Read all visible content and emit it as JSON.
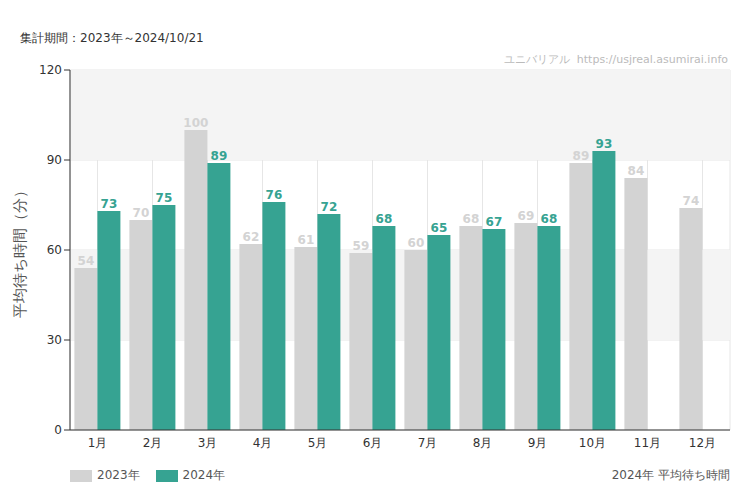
{
  "chart_data": {
    "type": "bar",
    "title": "2024年 平均待ち時間",
    "subtitle": "集計期間：2023年～2024/10/21",
    "annotations": [
      "ユニバリアル  https://usjreal.asumirai.info"
    ],
    "y_label": "平均待ち時間（分）",
    "categories": [
      "1月",
      "2月",
      "3月",
      "4月",
      "5月",
      "6月",
      "7月",
      "8月",
      "9月",
      "10月",
      "11月",
      "12月"
    ],
    "series": [
      {
        "name": "2023年",
        "color": "#d3d3d3",
        "values": [
          54,
          70,
          100,
          62,
          61,
          59,
          60,
          68,
          69,
          89,
          84,
          74
        ]
      },
      {
        "name": "2024年",
        "color": "#36a392",
        "values": [
          73,
          75,
          89,
          76,
          72,
          68,
          65,
          67,
          68,
          93,
          null,
          null
        ]
      }
    ],
    "ylim": [
      0,
      120
    ],
    "yticks": [
      0,
      30,
      60,
      90,
      120
    ],
    "grid": true,
    "data_labels": true,
    "legend": "bottom-left"
  }
}
